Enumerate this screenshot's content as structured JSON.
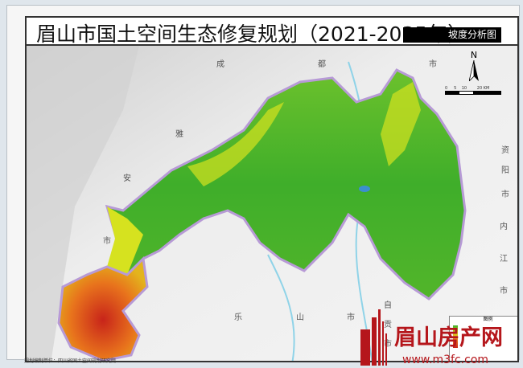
{
  "header": {
    "title": "眉山市国土空间生态修复规划（2021-2035年）",
    "subtitle": "坡度分析图"
  },
  "map": {
    "labels": [
      {
        "id": "cheng",
        "text": "成"
      },
      {
        "id": "du",
        "text": "都"
      },
      {
        "id": "shi1",
        "text": "市"
      },
      {
        "id": "ya",
        "text": "雅"
      },
      {
        "id": "an",
        "text": "安"
      },
      {
        "id": "shi2",
        "text": "市"
      },
      {
        "id": "zi",
        "text": "资"
      },
      {
        "id": "yang",
        "text": "阳"
      },
      {
        "id": "shi3",
        "text": "市"
      },
      {
        "id": "nei",
        "text": "内"
      },
      {
        "id": "jiang",
        "text": "江"
      },
      {
        "id": "shi4",
        "text": "市"
      },
      {
        "id": "le",
        "text": "乐"
      },
      {
        "id": "shan",
        "text": "山"
      },
      {
        "id": "shi5",
        "text": "市"
      },
      {
        "id": "zi2",
        "text": "自"
      },
      {
        "id": "gong",
        "text": "贡"
      },
      {
        "id": "shi6",
        "text": "市"
      }
    ],
    "north": "N",
    "scale": {
      "ticks": [
        "0",
        "5",
        "10",
        "20"
      ],
      "unit": "KM"
    },
    "legend_title": "图例",
    "colors": {
      "gentle": "#3fae2a",
      "moderate": "#d6e21f",
      "steep": "#e8731c",
      "very_steep": "#c8241a"
    }
  },
  "footer": {
    "unit": "规划编制单位：四川省国土空间规划研究院"
  },
  "watermark": {
    "brand": "眉山房产网",
    "url": "www.m3fc.com"
  }
}
